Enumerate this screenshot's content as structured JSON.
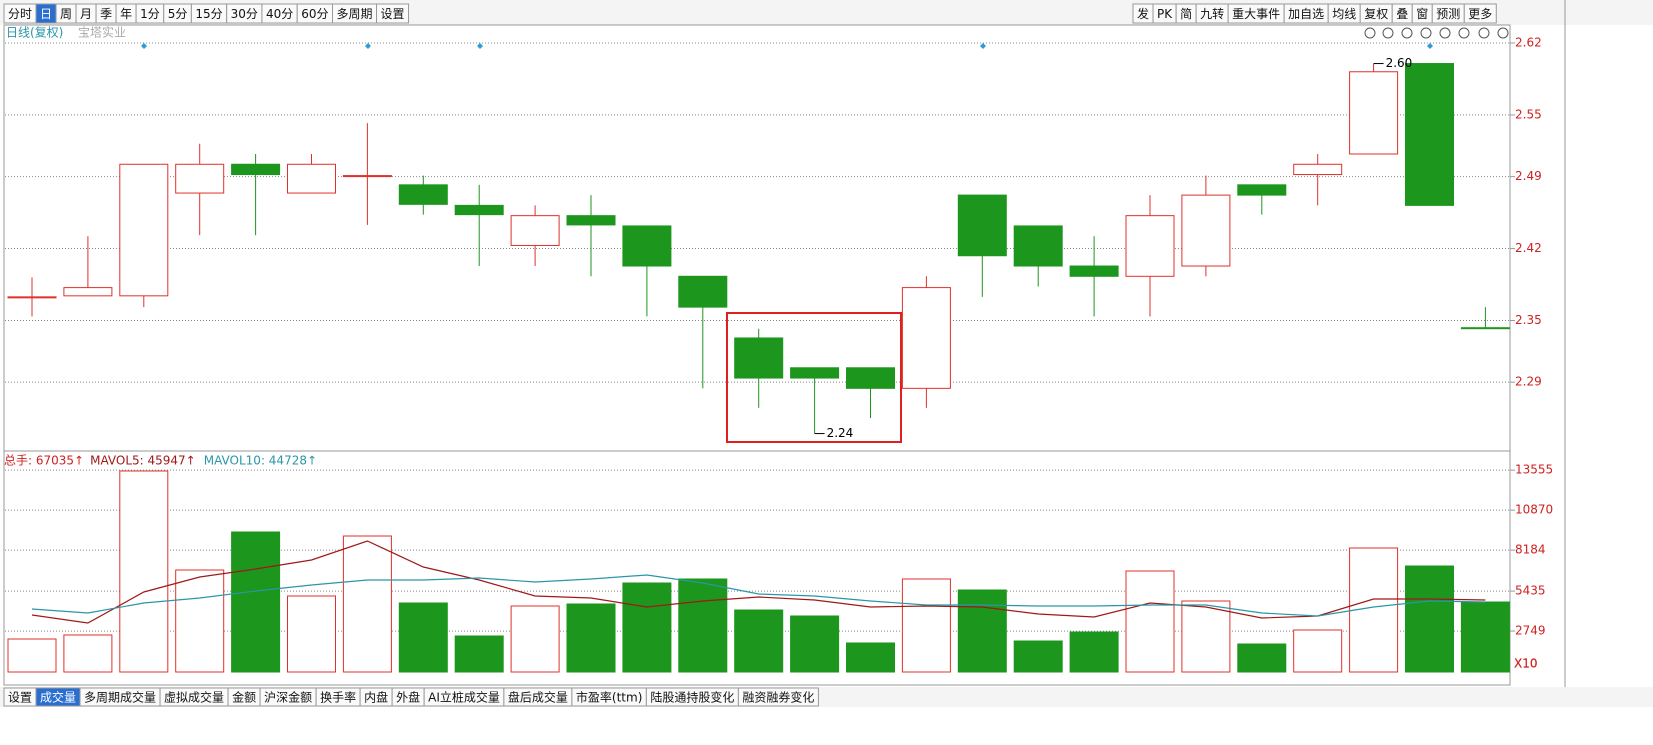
{
  "toolbar": {
    "items": [
      "分时",
      "日",
      "周",
      "月",
      "季",
      "年",
      "1分",
      "5分",
      "15分",
      "30分",
      "40分",
      "60分",
      "多周期",
      "设置"
    ],
    "selected": 1
  },
  "right_toolbar": {
    "items": [
      "发",
      "PK",
      "简",
      "九转",
      "重大事件",
      "加自选",
      "均线",
      "复权",
      "叠",
      "窗",
      "预测",
      "更多"
    ]
  },
  "bottom_tabs": {
    "items": [
      "设置",
      "成交量",
      "多周期成交量",
      "虚拟成交量",
      "金额",
      "沪深金额",
      "换手率",
      "内盘",
      "外盘",
      "AI立桩成交量",
      "盘后成交量",
      "市盈率(ttm)",
      "陆股通持股变化",
      "融资融券变化"
    ],
    "selected": 1
  },
  "chart_data": [
    {
      "type": "candlestick",
      "title": "日线(复权)",
      "subtitle": "宝塔实业",
      "open": [
        2.373,
        2.374,
        2.374,
        2.474,
        2.502,
        2.474,
        2.491,
        2.482,
        2.462,
        2.423,
        2.452,
        2.442,
        2.393,
        2.333,
        2.304,
        2.304,
        2.284,
        2.472,
        2.442,
        2.403,
        2.393,
        2.403,
        2.482,
        2.492,
        2.512,
        2.6,
        2.343
      ],
      "high": [
        2.392,
        2.432,
        2.502,
        2.522,
        2.512,
        2.512,
        2.542,
        2.491,
        2.482,
        2.462,
        2.472,
        2.442,
        2.393,
        2.342,
        2.304,
        2.304,
        2.393,
        2.472,
        2.442,
        2.432,
        2.472,
        2.491,
        2.482,
        2.512,
        2.6,
        2.6,
        2.363
      ],
      "low": [
        2.354,
        2.374,
        2.363,
        2.433,
        2.433,
        2.474,
        2.443,
        2.453,
        2.403,
        2.403,
        2.393,
        2.354,
        2.284,
        2.265,
        2.24,
        2.255,
        2.265,
        2.373,
        2.383,
        2.354,
        2.354,
        2.393,
        2.453,
        2.462,
        2.512,
        2.462,
        2.343
      ],
      "close": [
        2.373,
        2.382,
        2.502,
        2.502,
        2.492,
        2.502,
        2.491,
        2.463,
        2.453,
        2.452,
        2.443,
        2.403,
        2.363,
        2.294,
        2.294,
        2.284,
        2.382,
        2.413,
        2.403,
        2.393,
        2.452,
        2.472,
        2.472,
        2.502,
        2.592,
        2.462,
        2.343
      ],
      "colors": [
        "#e0302a",
        "#e0302a",
        "#e0302a",
        "#e0302a",
        "#1c961c",
        "#e0302a",
        "#e0302a",
        "#1c961c",
        "#1c961c",
        "#e0302a",
        "#1c961c",
        "#1c961c",
        "#1c961c",
        "#1c961c",
        "#1c961c",
        "#1c961c",
        "#e0302a",
        "#1c961c",
        "#1c961c",
        "#1c961c",
        "#e0302a",
        "#e0302a",
        "#1c961c",
        "#e0302a",
        "#e0302a",
        "#1c961c",
        "#1c961c"
      ],
      "up_color": "#e0302a",
      "max_label": {
        "value": 2.6,
        "label": "2.60"
      },
      "min_label": {
        "value": 2.24,
        "label": "2.24"
      },
      "ylim": [
        2.224,
        2.6375
      ],
      "yticks": [
        2.62,
        2.55,
        2.49,
        2.42,
        2.35,
        2.29
      ],
      "grid": true
    },
    {
      "type": "bar",
      "title": "总手: 67035↑",
      "title_color": "#d02020",
      "unit_label": "X10",
      "values": [
        2216,
        2485,
        13500,
        6850,
        9402,
        5104,
        9133,
        4634,
        2418,
        4432,
        4567,
        5977,
        6246,
        4164,
        3761,
        1948,
        6246,
        5507,
        2082,
        2686,
        6783,
        4768,
        1880,
        2821,
        8328,
        7119,
        4701
      ],
      "colors": [
        "#e0302a",
        "#e0302a",
        "#e0302a",
        "#e0302a",
        "#1c961c",
        "#e0302a",
        "#e0302a",
        "#1c961c",
        "#1c961c",
        "#e0302a",
        "#1c961c",
        "#1c961c",
        "#1c961c",
        "#1c961c",
        "#1c961c",
        "#1c961c",
        "#e0302a",
        "#1c961c",
        "#1c961c",
        "#1c961c",
        "#e0302a",
        "#e0302a",
        "#1c961c",
        "#e0302a",
        "#e0302a",
        "#1c961c",
        "#1c961c"
      ],
      "up_color": "#e0302a",
      "series": [
        {
          "name": "MAVOL5: 45947↑",
          "color": "#a01818",
          "values": [
            3828,
            3291,
            5373,
            6380,
            6917,
            7522,
            8798,
            7052,
            6179,
            5104,
            4970,
            4365,
            4768,
            5037,
            4835,
            4365,
            4433,
            4365,
            3895,
            3694,
            4634,
            4365,
            3627,
            3761,
            4903,
            4903,
            4835
          ]
        },
        {
          "name": "MAVOL10: 44728↑",
          "color": "#2a96a8",
          "values": [
            4231,
            3962,
            4634,
            4970,
            5440,
            5843,
            6179,
            6179,
            6313,
            6044,
            6246,
            6515,
            5977,
            5238,
            5104,
            4768,
            4500,
            4500,
            4433,
            4433,
            4500,
            4500,
            3962,
            3761,
            4365,
            4768,
            4701
          ]
        }
      ],
      "ylim": [
        0,
        14775
      ],
      "yticks": [
        13555,
        10870,
        8184,
        5435,
        2749
      ],
      "grid": true
    }
  ]
}
